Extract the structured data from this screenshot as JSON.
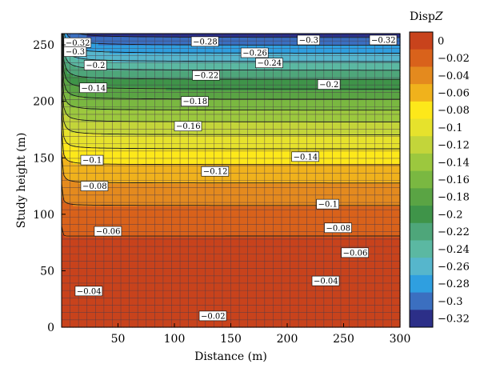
{
  "chart_data": {
    "type": "heatmap",
    "subtype": "filled-contour",
    "title": "",
    "xlabel": "Distance (m)",
    "ylabel": "Study height (m)",
    "xlim": [
      0,
      300
    ],
    "ylim": [
      0,
      260
    ],
    "x_ticks": [
      50,
      100,
      150,
      200,
      250,
      300
    ],
    "y_ticks": [
      0,
      50,
      100,
      150,
      200,
      250
    ],
    "x_tick_labels": [
      "50",
      "100",
      "150",
      "200",
      "250",
      "300"
    ],
    "y_tick_labels": [
      "0",
      "50",
      "100",
      "150",
      "200",
      "250"
    ],
    "colorbar": {
      "title": "DispZ",
      "levels": [
        0,
        -0.02,
        -0.04,
        -0.06,
        -0.08,
        -0.1,
        -0.12,
        -0.14,
        -0.16,
        -0.18,
        -0.2,
        -0.22,
        -0.24,
        -0.26,
        -0.28,
        -0.3,
        -0.32
      ],
      "level_labels": [
        "0",
        "−0.02",
        "−0.04",
        "−0.06",
        "−0.08",
        "−0.1",
        "−0.12",
        "−0.14",
        "−0.16",
        "−0.18",
        "−0.2",
        "−0.22",
        "−0.24",
        "−0.26",
        "−0.28",
        "−0.3",
        "−0.32"
      ],
      "colors": [
        "#c8431c",
        "#d9621b",
        "#e48a1e",
        "#f0b21c",
        "#fde81a",
        "#e6e22c",
        "#c3d53a",
        "#9cc83e",
        "#7ab841",
        "#5aa444",
        "#3f9449",
        "#4ea67a",
        "#5bb8a2",
        "#56b6cc",
        "#2f9fe0",
        "#3b6fc0",
        "#2c2f88"
      ]
    },
    "grid": true,
    "mesh": {
      "x_spacing": 7.5,
      "y_spacing": 6.5
    },
    "contour_labels": [
      {
        "value": -0.02,
        "label": "−0.02",
        "x": 122,
        "y": 10
      },
      {
        "value": -0.04,
        "label": "−0.04",
        "x": 12,
        "y": 32
      },
      {
        "value": -0.04,
        "label": "−0.04",
        "x": 222,
        "y": 41
      },
      {
        "value": -0.06,
        "label": "−0.06",
        "x": 29,
        "y": 85
      },
      {
        "value": -0.06,
        "label": "−0.06",
        "x": 248,
        "y": 66
      },
      {
        "value": -0.08,
        "label": "−0.08",
        "x": 17,
        "y": 125
      },
      {
        "value": -0.08,
        "label": "−0.08",
        "x": 233,
        "y": 88
      },
      {
        "value": -0.1,
        "label": "−0.1",
        "x": 17,
        "y": 148
      },
      {
        "value": -0.1,
        "label": "−0.1",
        "x": 226,
        "y": 109
      },
      {
        "value": -0.12,
        "label": "−0.12",
        "x": 124,
        "y": 138
      },
      {
        "value": -0.14,
        "label": "−0.14",
        "x": 16,
        "y": 212
      },
      {
        "value": -0.14,
        "label": "−0.14",
        "x": 204,
        "y": 151
      },
      {
        "value": -0.16,
        "label": "−0.16",
        "x": 100,
        "y": 178
      },
      {
        "value": -0.18,
        "label": "−0.18",
        "x": 106,
        "y": 200
      },
      {
        "value": -0.2,
        "label": "−0.2",
        "x": 20,
        "y": 232
      },
      {
        "value": -0.2,
        "label": "−0.2",
        "x": 227,
        "y": 215
      },
      {
        "value": -0.22,
        "label": "−0.22",
        "x": 116,
        "y": 223
      },
      {
        "value": -0.24,
        "label": "−0.24",
        "x": 172,
        "y": 234
      },
      {
        "value": -0.26,
        "label": "−0.26",
        "x": 159,
        "y": 243
      },
      {
        "value": -0.28,
        "label": "−0.28",
        "x": 115,
        "y": 253
      },
      {
        "value": -0.3,
        "label": "−0.3",
        "x": 209,
        "y": 257
      },
      {
        "value": -0.32,
        "label": "−0.32",
        "x": 282,
        "y": 264
      },
      {
        "value": -0.32,
        "label": "−0.32",
        "x": 2,
        "y": 252
      },
      {
        "value": -0.3,
        "label": "−0.3",
        "x": 2,
        "y": 244
      }
    ]
  }
}
